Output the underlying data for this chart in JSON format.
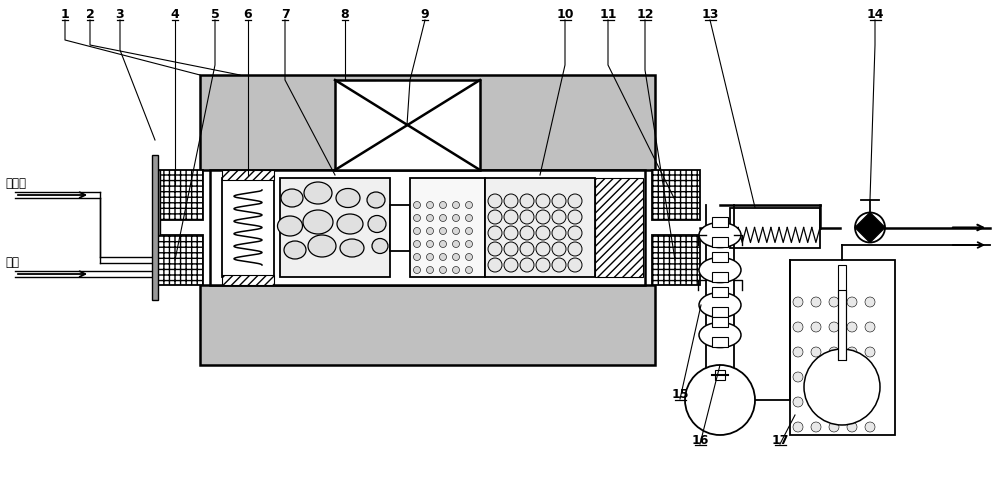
{
  "bg_color": "#ffffff",
  "gray_body": "#c0c0c0",
  "gray_dot": "#c8c8c8",
  "label_fanying": "反应气",
  "label_zaiqi": "载气",
  "black": "#000000"
}
